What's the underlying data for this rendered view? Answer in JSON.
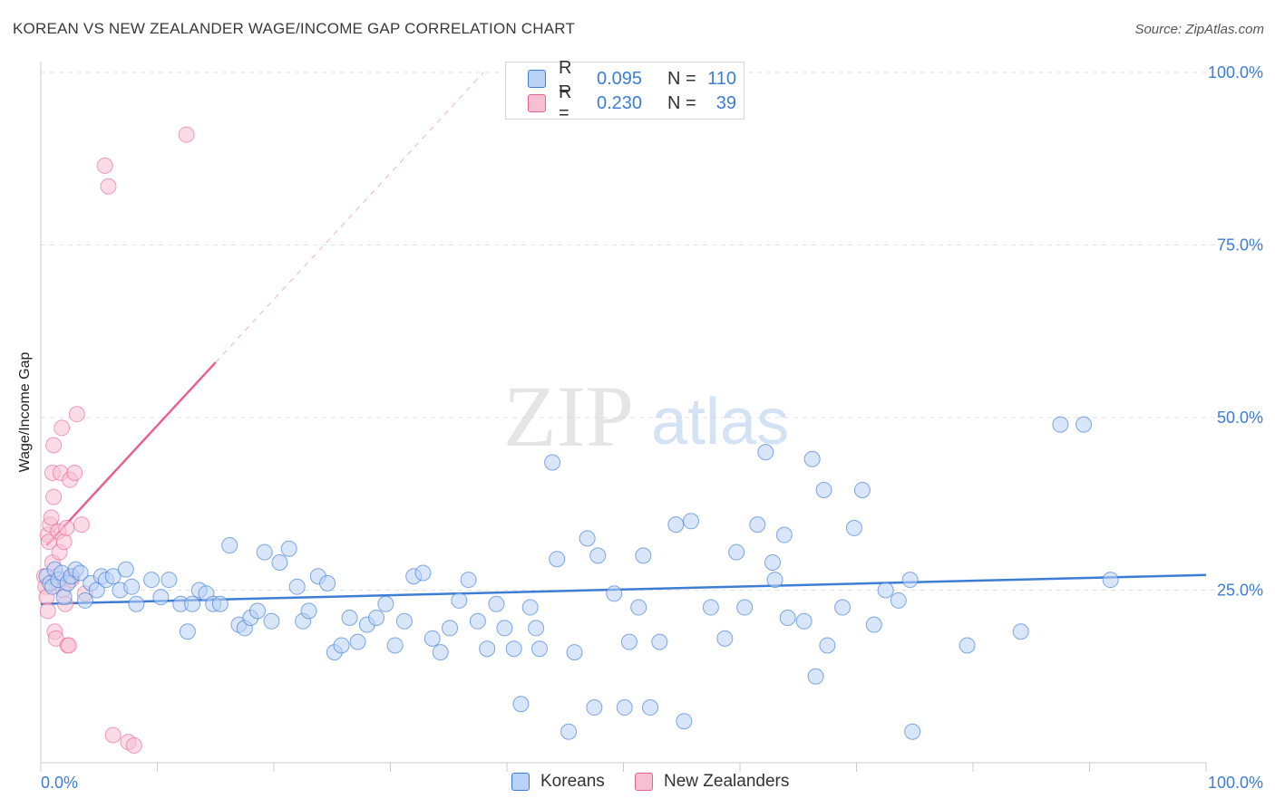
{
  "title": "KOREAN VS NEW ZEALANDER WAGE/INCOME GAP CORRELATION CHART",
  "source": "Source: ZipAtlas.com",
  "watermark": {
    "zip": "ZIP",
    "atlas": "atlas"
  },
  "colors": {
    "blue": "#3d7dd6",
    "blue_fill": "#b9d2f5",
    "pink": "#e8628f",
    "pink_fill": "#f7c0d2",
    "grid": "#e2e2e2"
  },
  "legend": {
    "rows": [
      {
        "r_label": "R =",
        "r_value": "0.095",
        "n_label": "N =",
        "n_value": "110"
      },
      {
        "r_label": "R =",
        "r_value": "0.230",
        "n_label": "N =",
        "n_value": "39"
      }
    ]
  },
  "bottom_legend": {
    "koreans": "Koreans",
    "new_zealanders": "New Zealanders"
  },
  "chart_data": {
    "type": "scatter",
    "title": "KOREAN VS NEW ZEALANDER WAGE/INCOME GAP CORRELATION CHART",
    "xlabel": "",
    "ylabel": "Wage/Income Gap",
    "xlim": [
      0,
      100
    ],
    "ylim": [
      0,
      100
    ],
    "x_tick_labels": [
      "0.0%",
      "100.0%"
    ],
    "y_tick_labels": [
      "25.0%",
      "50.0%",
      "75.0%",
      "100.0%"
    ],
    "y_ticks": [
      25,
      50,
      75,
      100
    ],
    "legend_position": "top-center",
    "series": [
      {
        "name": "Koreans",
        "color": "#3d7dd6",
        "trend": {
          "x": [
            0,
            100
          ],
          "y": [
            23.0,
            27.2
          ],
          "style": "solid"
        },
        "points": [
          [
            0.5,
            27
          ],
          [
            0.8,
            26
          ],
          [
            1.0,
            25.5
          ],
          [
            1.2,
            28
          ],
          [
            1.5,
            26.5
          ],
          [
            1.8,
            27.5
          ],
          [
            2.0,
            24
          ],
          [
            2.3,
            26
          ],
          [
            2.6,
            27
          ],
          [
            3.0,
            28
          ],
          [
            3.4,
            27.5
          ],
          [
            3.8,
            23.5
          ],
          [
            4.3,
            26
          ],
          [
            4.8,
            25
          ],
          [
            5.2,
            27
          ],
          [
            5.6,
            26.5
          ],
          [
            6.2,
            27
          ],
          [
            6.8,
            25
          ],
          [
            7.3,
            28
          ],
          [
            7.8,
            25.5
          ],
          [
            8.2,
            23
          ],
          [
            9.5,
            26.5
          ],
          [
            10.3,
            24
          ],
          [
            11.0,
            26.5
          ],
          [
            12.0,
            23
          ],
          [
            12.6,
            19
          ],
          [
            13.0,
            23
          ],
          [
            13.6,
            25
          ],
          [
            14.2,
            24.5
          ],
          [
            14.8,
            23
          ],
          [
            15.4,
            23
          ],
          [
            16.2,
            31.5
          ],
          [
            17.0,
            20
          ],
          [
            17.5,
            19.5
          ],
          [
            18.0,
            21
          ],
          [
            18.6,
            22
          ],
          [
            19.2,
            30.5
          ],
          [
            19.8,
            20.5
          ],
          [
            20.5,
            29
          ],
          [
            21.3,
            31
          ],
          [
            22.0,
            25.5
          ],
          [
            22.5,
            20.5
          ],
          [
            23.0,
            22
          ],
          [
            23.8,
            27
          ],
          [
            24.6,
            26
          ],
          [
            25.2,
            16
          ],
          [
            25.8,
            17
          ],
          [
            26.5,
            21
          ],
          [
            27.2,
            17.5
          ],
          [
            28.0,
            20
          ],
          [
            28.8,
            21
          ],
          [
            29.6,
            23
          ],
          [
            30.4,
            17
          ],
          [
            31.2,
            20.5
          ],
          [
            32.0,
            27
          ],
          [
            32.8,
            27.5
          ],
          [
            33.6,
            18
          ],
          [
            34.3,
            16
          ],
          [
            35.1,
            19.5
          ],
          [
            35.9,
            23.5
          ],
          [
            36.7,
            26.5
          ],
          [
            37.5,
            20.5
          ],
          [
            38.3,
            16.5
          ],
          [
            39.1,
            23
          ],
          [
            39.8,
            19.5
          ],
          [
            40.6,
            16.5
          ],
          [
            41.2,
            8.5
          ],
          [
            42.0,
            22.5
          ],
          [
            42.5,
            19.5
          ],
          [
            42.8,
            16.5
          ],
          [
            43.9,
            43.5
          ],
          [
            44.3,
            29.5
          ],
          [
            45.3,
            4.5
          ],
          [
            45.8,
            16
          ],
          [
            46.9,
            32.5
          ],
          [
            47.5,
            8
          ],
          [
            47.8,
            30
          ],
          [
            49.2,
            24.5
          ],
          [
            50.1,
            8
          ],
          [
            50.5,
            17.5
          ],
          [
            51.3,
            22.5
          ],
          [
            51.7,
            30
          ],
          [
            52.3,
            8
          ],
          [
            53.1,
            17.5
          ],
          [
            54.5,
            34.5
          ],
          [
            55.2,
            6
          ],
          [
            55.8,
            35
          ],
          [
            57.5,
            22.5
          ],
          [
            58.7,
            18
          ],
          [
            59.7,
            30.5
          ],
          [
            60.4,
            22.5
          ],
          [
            61.5,
            34.5
          ],
          [
            62.2,
            45
          ],
          [
            62.8,
            29
          ],
          [
            63.0,
            26.5
          ],
          [
            63.8,
            33
          ],
          [
            64.1,
            21
          ],
          [
            65.5,
            20.5
          ],
          [
            66.2,
            44
          ],
          [
            67.2,
            39.5
          ],
          [
            66.5,
            12.5
          ],
          [
            67.5,
            17
          ],
          [
            68.8,
            22.5
          ],
          [
            69.8,
            34
          ],
          [
            70.5,
            39.5
          ],
          [
            71.5,
            20
          ],
          [
            72.5,
            25
          ],
          [
            73.6,
            23.5
          ],
          [
            74.6,
            26.5
          ],
          [
            74.8,
            4.5
          ],
          [
            79.5,
            17
          ],
          [
            84.1,
            19
          ],
          [
            87.5,
            49
          ],
          [
            89.5,
            49
          ],
          [
            91.8,
            26.5
          ]
        ]
      },
      {
        "name": "New Zealanders",
        "color": "#e8628f",
        "trend": {
          "x": [
            0.5,
            15
          ],
          "y": [
            31.5,
            58
          ],
          "style": "solid",
          "extended_dashed_to": [
            40,
            100
          ]
        },
        "points": [
          [
            0.3,
            27
          ],
          [
            0.4,
            25.5
          ],
          [
            0.5,
            24
          ],
          [
            0.6,
            22
          ],
          [
            0.6,
            33
          ],
          [
            0.7,
            32
          ],
          [
            0.8,
            34.5
          ],
          [
            0.9,
            35.5
          ],
          [
            1.0,
            29
          ],
          [
            1.0,
            42
          ],
          [
            1.1,
            46
          ],
          [
            1.1,
            38.5
          ],
          [
            1.2,
            19
          ],
          [
            1.3,
            18
          ],
          [
            1.4,
            27
          ],
          [
            1.5,
            26
          ],
          [
            1.5,
            33.5
          ],
          [
            1.6,
            30.5
          ],
          [
            1.7,
            42
          ],
          [
            1.8,
            48.5
          ],
          [
            1.9,
            25
          ],
          [
            2.0,
            32
          ],
          [
            2.1,
            23
          ],
          [
            2.2,
            34
          ],
          [
            2.3,
            17
          ],
          [
            2.4,
            17
          ],
          [
            2.5,
            41
          ],
          [
            2.7,
            27
          ],
          [
            2.9,
            42
          ],
          [
            3.1,
            50.5
          ],
          [
            3.5,
            34.5
          ],
          [
            3.8,
            24.5
          ],
          [
            5.8,
            83.5
          ],
          [
            6.2,
            4
          ],
          [
            7.5,
            3
          ],
          [
            8.0,
            2.5
          ],
          [
            5.5,
            86.5
          ],
          [
            12.5,
            91
          ],
          [
            2.6,
            26.5
          ]
        ]
      }
    ]
  }
}
